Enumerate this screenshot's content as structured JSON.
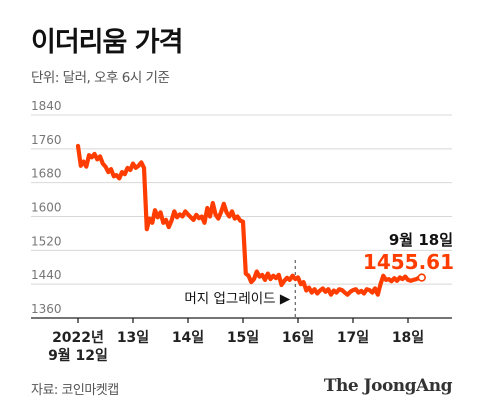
{
  "header": {
    "title": "이더리움 가격",
    "subtitle": "단위: 달러, 오후 6시 기준"
  },
  "footer": {
    "source": "자료: 코인마켓캡",
    "brand": "The JoongAng"
  },
  "chart_data": {
    "type": "line",
    "title": "이더리움 가격",
    "subtitle": "단위: 달러, 오후 6시 기준",
    "ylim": [
      1360,
      1840
    ],
    "yticks": [
      1360,
      1440,
      1520,
      1600,
      1680,
      1760,
      1840
    ],
    "xlim": [
      0,
      6.4
    ],
    "xtick_labels": [
      {
        "x": 0,
        "label": "2022년",
        "sub": "9월 12일"
      },
      {
        "x": 1,
        "label": "13일"
      },
      {
        "x": 2,
        "label": "14일"
      },
      {
        "x": 3,
        "label": "15일"
      },
      {
        "x": 4,
        "label": "16일"
      },
      {
        "x": 5,
        "label": "17일"
      },
      {
        "x": 6,
        "label": "18일"
      }
    ],
    "grid": true,
    "line_color": "#ff3d00",
    "series": [
      {
        "x": [
          0,
          0.05,
          0.1,
          0.15,
          0.2,
          0.25,
          0.3,
          0.35,
          0.4,
          0.45,
          0.5,
          0.55,
          0.6,
          0.65,
          0.7,
          0.75,
          0.8,
          0.85,
          0.9,
          0.95,
          1.0,
          1.05,
          1.1,
          1.15,
          1.2,
          1.25,
          1.3,
          1.35,
          1.4,
          1.45,
          1.5,
          1.55,
          1.6,
          1.65,
          1.7,
          1.75,
          1.8,
          1.85,
          1.9,
          1.95,
          2.0,
          2.05,
          2.1,
          2.15,
          2.2,
          2.25,
          2.3,
          2.35,
          2.4,
          2.45,
          2.5,
          2.55,
          2.6,
          2.65,
          2.7,
          2.75,
          2.8,
          2.85,
          2.9,
          2.95,
          3.0,
          3.05,
          3.1,
          3.15,
          3.2,
          3.25,
          3.3,
          3.35,
          3.4,
          3.45,
          3.5,
          3.55,
          3.6,
          3.65,
          3.7,
          3.75,
          3.8,
          3.85,
          3.9,
          3.95,
          4.0,
          4.05,
          4.1,
          4.15,
          4.2,
          4.25,
          4.3,
          4.35,
          4.4,
          4.45,
          4.5,
          4.55,
          4.6,
          4.65,
          4.7,
          4.75,
          4.8,
          4.85,
          4.9,
          4.95,
          5.0,
          5.05,
          5.1,
          5.15,
          5.2,
          5.25,
          5.3,
          5.35,
          5.4,
          5.45,
          5.5,
          5.55,
          5.6,
          5.65,
          5.7,
          5.75,
          5.8,
          5.85,
          5.9,
          5.95,
          6.0,
          6.05,
          6.1,
          6.15,
          6.2,
          6.25
        ],
        "values": [
          1767,
          1720,
          1730,
          1718,
          1745,
          1740,
          1748,
          1735,
          1742,
          1725,
          1718,
          1705,
          1712,
          1695,
          1698,
          1690,
          1705,
          1700,
          1715,
          1710,
          1725,
          1715,
          1720,
          1728,
          1715,
          1570,
          1595,
          1585,
          1615,
          1598,
          1610,
          1585,
          1592,
          1575,
          1590,
          1612,
          1598,
          1605,
          1600,
          1612,
          1605,
          1598,
          1592,
          1604,
          1596,
          1600,
          1585,
          1620,
          1600,
          1632,
          1605,
          1595,
          1610,
          1630,
          1610,
          1600,
          1612,
          1595,
          1600,
          1590,
          1588,
          1465,
          1460,
          1445,
          1452,
          1470,
          1458,
          1462,
          1450,
          1465,
          1452,
          1460,
          1454,
          1462,
          1438,
          1448,
          1455,
          1450,
          1460,
          1452,
          1456,
          1440,
          1445,
          1425,
          1432,
          1420,
          1428,
          1418,
          1425,
          1430,
          1422,
          1428,
          1415,
          1425,
          1420,
          1428,
          1426,
          1420,
          1415,
          1422,
          1426,
          1428,
          1420,
          1424,
          1418,
          1428,
          1426,
          1420,
          1430,
          1415,
          1440,
          1460,
          1450,
          1452,
          1447,
          1454,
          1448,
          1456,
          1452,
          1458,
          1450,
          1448,
          1450,
          1452,
          1455,
          1455
        ]
      }
    ],
    "annotations": [
      {
        "x": 3.95,
        "text": "머지 업그레이드 ▶"
      },
      {
        "x": 6.25,
        "y": 1455.61,
        "date": "9월 18일",
        "value": "1455.61"
      }
    ]
  }
}
